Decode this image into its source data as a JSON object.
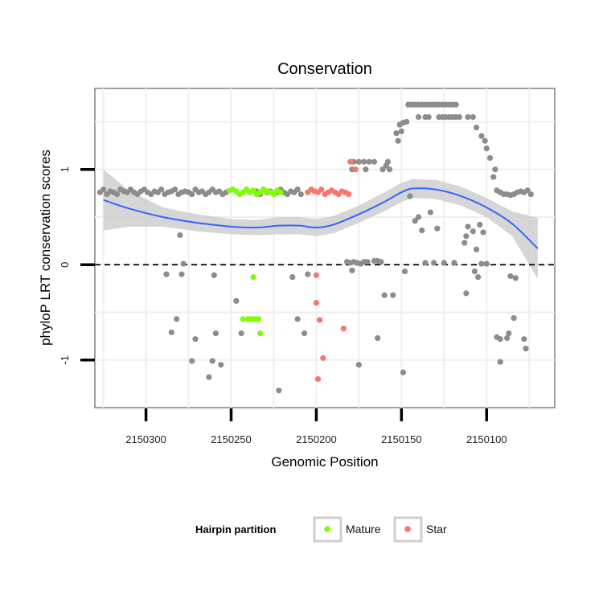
{
  "chart_data": {
    "type": "scatter",
    "title": "Conservation",
    "xlabel": "Genomic Position",
    "ylabel": "phyloP LRT conservation scores",
    "x_reversed": true,
    "xlim": [
      2150330,
      2150060
    ],
    "ylim": [
      -1.5,
      1.85
    ],
    "x_ticks": [
      2150300,
      2150250,
      2150200,
      2150150,
      2150100
    ],
    "x_tick_labels": [
      "2150300",
      "2150250",
      "2150200",
      "2150150",
      "2150100"
    ],
    "y_ticks": [
      -1,
      0,
      1
    ],
    "y_tick_labels": [
      "-1",
      "0",
      "1"
    ],
    "reference_line": {
      "y": 0,
      "style": "dashed"
    },
    "legend": {
      "title": "Hairpin partition",
      "entries": [
        {
          "name": "Mature",
          "color": "#7FFF00"
        },
        {
          "name": "Star",
          "color": "#F8766D"
        }
      ]
    },
    "colors": {
      "other": "#8c8c8c",
      "smooth": "#3366FF",
      "band": "#cccccc",
      "grid": "#efefef"
    },
    "series": [
      {
        "name": "Other",
        "points": [
          [
            2150327,
            0.76
          ],
          [
            2150325,
            0.79
          ],
          [
            2150323,
            0.74
          ],
          [
            2150321,
            0.77
          ],
          [
            2150319,
            0.76
          ],
          [
            2150317,
            0.74
          ],
          [
            2150315,
            0.79
          ],
          [
            2150313,
            0.77
          ],
          [
            2150311,
            0.76
          ],
          [
            2150309,
            0.79
          ],
          [
            2150307,
            0.76
          ],
          [
            2150305,
            0.74
          ],
          [
            2150303,
            0.77
          ],
          [
            2150301,
            0.79
          ],
          [
            2150299,
            0.76
          ],
          [
            2150297,
            0.74
          ],
          [
            2150295,
            0.77
          ],
          [
            2150293,
            0.76
          ],
          [
            2150291,
            0.79
          ],
          [
            2150289,
            0.74
          ],
          [
            2150287,
            0.76
          ],
          [
            2150285,
            0.77
          ],
          [
            2150283,
            0.79
          ],
          [
            2150281,
            0.74
          ],
          [
            2150279,
            0.76
          ],
          [
            2150277,
            0.77
          ],
          [
            2150275,
            0.76
          ],
          [
            2150273,
            0.74
          ],
          [
            2150271,
            0.79
          ],
          [
            2150269,
            0.76
          ],
          [
            2150267,
            0.77
          ],
          [
            2150265,
            0.74
          ],
          [
            2150263,
            0.76
          ],
          [
            2150261,
            0.79
          ],
          [
            2150259,
            0.76
          ],
          [
            2150257,
            0.77
          ],
          [
            2150255,
            0.74
          ],
          [
            2150253,
            0.76
          ],
          [
            2150235,
            0.77
          ],
          [
            2150233,
            0.74
          ],
          [
            2150231,
            0.79
          ],
          [
            2150229,
            0.76
          ],
          [
            2150227,
            0.77
          ],
          [
            2150225,
            0.74
          ],
          [
            2150223,
            0.76
          ],
          [
            2150221,
            0.79
          ],
          [
            2150219,
            0.76
          ],
          [
            2150217,
            0.74
          ],
          [
            2150215,
            0.77
          ],
          [
            2150213,
            0.76
          ],
          [
            2150211,
            0.79
          ],
          [
            2150209,
            0.74
          ],
          [
            2150288,
            -0.1
          ],
          [
            2150279,
            -0.1
          ],
          [
            2150280,
            0.31
          ],
          [
            2150278,
            0.01
          ],
          [
            2150282,
            -0.57
          ],
          [
            2150285,
            -0.71
          ],
          [
            2150271,
            -0.78
          ],
          [
            2150273,
            -1.01
          ],
          [
            2150263,
            -1.18
          ],
          [
            2150260,
            -0.11
          ],
          [
            2150261,
            -1.01
          ],
          [
            2150259,
            -0.72
          ],
          [
            2150256,
            -1.05
          ],
          [
            2150247,
            -0.38
          ],
          [
            2150244,
            -0.72
          ],
          [
            2150240,
            -0.57
          ],
          [
            2150211,
            -0.57
          ],
          [
            2150207,
            -0.72
          ],
          [
            2150214,
            -0.13
          ],
          [
            2150205,
            -0.1
          ],
          [
            2150222,
            -1.32
          ],
          [
            2150178,
            1.08
          ],
          [
            2150175,
            1.08
          ],
          [
            2150172,
            1.08
          ],
          [
            2150169,
            1.08
          ],
          [
            2150166,
            1.08
          ],
          [
            2150179,
            1.0
          ],
          [
            2150171,
            1.0
          ],
          [
            2150161,
            1.0
          ],
          [
            2150158,
            1.08
          ],
          [
            2150159,
            1.04
          ],
          [
            2150157,
            1.0
          ],
          [
            2150182,
            0.03
          ],
          [
            2150180,
            0.02
          ],
          [
            2150178,
            0.03
          ],
          [
            2150176,
            0.02
          ],
          [
            2150174,
            0.01
          ],
          [
            2150172,
            0.03
          ],
          [
            2150170,
            0.03
          ],
          [
            2150166,
            0.04
          ],
          [
            2150164,
            0.04
          ],
          [
            2150162,
            0.03
          ],
          [
            2150179,
            -0.06
          ],
          [
            2150175,
            -1.05
          ],
          [
            2150164,
            -0.77
          ],
          [
            2150160,
            -0.32
          ],
          [
            2150155,
            -0.32
          ],
          [
            2150153,
            1.38
          ],
          [
            2150151,
            1.47
          ],
          [
            2150149,
            1.49
          ],
          [
            2150147,
            1.5
          ],
          [
            2150150,
            1.4
          ],
          [
            2150152,
            1.3
          ],
          [
            2150146,
            1.68
          ],
          [
            2150144,
            1.68
          ],
          [
            2150142,
            1.68
          ],
          [
            2150140,
            1.68
          ],
          [
            2150138,
            1.68
          ],
          [
            2150136,
            1.68
          ],
          [
            2150134,
            1.68
          ],
          [
            2150132,
            1.68
          ],
          [
            2150130,
            1.68
          ],
          [
            2150128,
            1.68
          ],
          [
            2150126,
            1.68
          ],
          [
            2150124,
            1.68
          ],
          [
            2150122,
            1.68
          ],
          [
            2150120,
            1.68
          ],
          [
            2150118,
            1.68
          ],
          [
            2150140,
            1.55
          ],
          [
            2150136,
            1.55
          ],
          [
            2150134,
            1.55
          ],
          [
            2150128,
            1.55
          ],
          [
            2150126,
            1.55
          ],
          [
            2150124,
            1.55
          ],
          [
            2150122,
            1.55
          ],
          [
            2150120,
            1.55
          ],
          [
            2150118,
            1.55
          ],
          [
            2150116,
            1.55
          ],
          [
            2150111,
            1.55
          ],
          [
            2150108,
            1.55
          ],
          [
            2150106,
            1.44
          ],
          [
            2150103,
            1.35
          ],
          [
            2150101,
            1.3
          ],
          [
            2150100,
            1.22
          ],
          [
            2150098,
            1.12
          ],
          [
            2150142,
            0.46
          ],
          [
            2150140,
            0.5
          ],
          [
            2150138,
            0.36
          ],
          [
            2150136,
            0.02
          ],
          [
            2150133,
            0.55
          ],
          [
            2150131,
            0.02
          ],
          [
            2150129,
            0.38
          ],
          [
            2150125,
            0.02
          ],
          [
            2150119,
            0.02
          ],
          [
            2150112,
            0.3
          ],
          [
            2150111,
            0.4
          ],
          [
            2150113,
            0.23
          ],
          [
            2150108,
            0.35
          ],
          [
            2150107,
            -0.07
          ],
          [
            2150106,
            0.16
          ],
          [
            2150105,
            -0.13
          ],
          [
            2150104,
            0.42
          ],
          [
            2150103,
            0.01
          ],
          [
            2150102,
            0.34
          ],
          [
            2150100,
            0.01
          ],
          [
            2150112,
            -0.3
          ],
          [
            2150096,
            0.92
          ],
          [
            2150095,
            1.0
          ],
          [
            2150094,
            0.78
          ],
          [
            2150092,
            0.76
          ],
          [
            2150090,
            0.74
          ],
          [
            2150088,
            0.74
          ],
          [
            2150086,
            0.73
          ],
          [
            2150084,
            0.74
          ],
          [
            2150082,
            0.76
          ],
          [
            2150080,
            0.77
          ],
          [
            2150078,
            0.76
          ],
          [
            2150076,
            0.78
          ],
          [
            2150074,
            0.74
          ],
          [
            2150094,
            -0.76
          ],
          [
            2150092,
            -0.78
          ],
          [
            2150092,
            -1.02
          ],
          [
            2150088,
            -0.77
          ],
          [
            2150087,
            -0.72
          ],
          [
            2150084,
            -0.56
          ],
          [
            2150078,
            -0.78
          ],
          [
            2150077,
            -0.88
          ],
          [
            2150086,
            -0.12
          ],
          [
            2150083,
            -0.14
          ],
          [
            2150149,
            -1.13
          ],
          [
            2150148,
            -0.07
          ],
          [
            2150145,
            0.72
          ]
        ]
      },
      {
        "name": "Mature",
        "points": [
          [
            2150251,
            0.78
          ],
          [
            2150249,
            0.79
          ],
          [
            2150247,
            0.77
          ],
          [
            2150245,
            0.74
          ],
          [
            2150243,
            0.76
          ],
          [
            2150241,
            0.79
          ],
          [
            2150239,
            0.76
          ],
          [
            2150237,
            0.78
          ],
          [
            2150235,
            0.74
          ],
          [
            2150233,
            0.76
          ],
          [
            2150231,
            0.79
          ],
          [
            2150229,
            0.77
          ],
          [
            2150227,
            0.76
          ],
          [
            2150225,
            0.74
          ],
          [
            2150223,
            0.78
          ],
          [
            2150221,
            0.76
          ],
          [
            2150243,
            -0.57
          ],
          [
            2150240,
            -0.57
          ],
          [
            2150238,
            -0.57
          ],
          [
            2150236,
            -0.57
          ],
          [
            2150234,
            -0.57
          ],
          [
            2150233,
            -0.72
          ],
          [
            2150237,
            -0.13
          ]
        ]
      },
      {
        "name": "Star",
        "points": [
          [
            2150205,
            0.76
          ],
          [
            2150203,
            0.79
          ],
          [
            2150201,
            0.77
          ],
          [
            2150199,
            0.76
          ],
          [
            2150197,
            0.79
          ],
          [
            2150195,
            0.74
          ],
          [
            2150193,
            0.76
          ],
          [
            2150191,
            0.78
          ],
          [
            2150189,
            0.76
          ],
          [
            2150187,
            0.74
          ],
          [
            2150185,
            0.77
          ],
          [
            2150183,
            0.76
          ],
          [
            2150181,
            0.74
          ],
          [
            2150180,
            1.08
          ],
          [
            2150177,
            1.0
          ],
          [
            2150200,
            -0.11
          ],
          [
            2150198,
            -0.58
          ],
          [
            2150196,
            -0.98
          ],
          [
            2150200,
            -0.4
          ],
          [
            2150199,
            -1.2
          ],
          [
            2150184,
            -0.67
          ]
        ]
      }
    ],
    "smooth": {
      "x": [
        2150325,
        2150310,
        2150290,
        2150270,
        2150250,
        2150235,
        2150222,
        2150210,
        2150200,
        2150190,
        2150175,
        2150160,
        2150150,
        2150143,
        2150130,
        2150115,
        2150100,
        2150085,
        2150070
      ],
      "y": [
        0.68,
        0.59,
        0.5,
        0.44,
        0.4,
        0.39,
        0.41,
        0.41,
        0.39,
        0.42,
        0.53,
        0.66,
        0.76,
        0.8,
        0.79,
        0.72,
        0.6,
        0.43,
        0.17
      ],
      "se": [
        0.32,
        0.19,
        0.1,
        0.09,
        0.08,
        0.08,
        0.09,
        0.09,
        0.09,
        0.09,
        0.09,
        0.1,
        0.1,
        0.1,
        0.1,
        0.1,
        0.1,
        0.13,
        0.32
      ]
    }
  }
}
